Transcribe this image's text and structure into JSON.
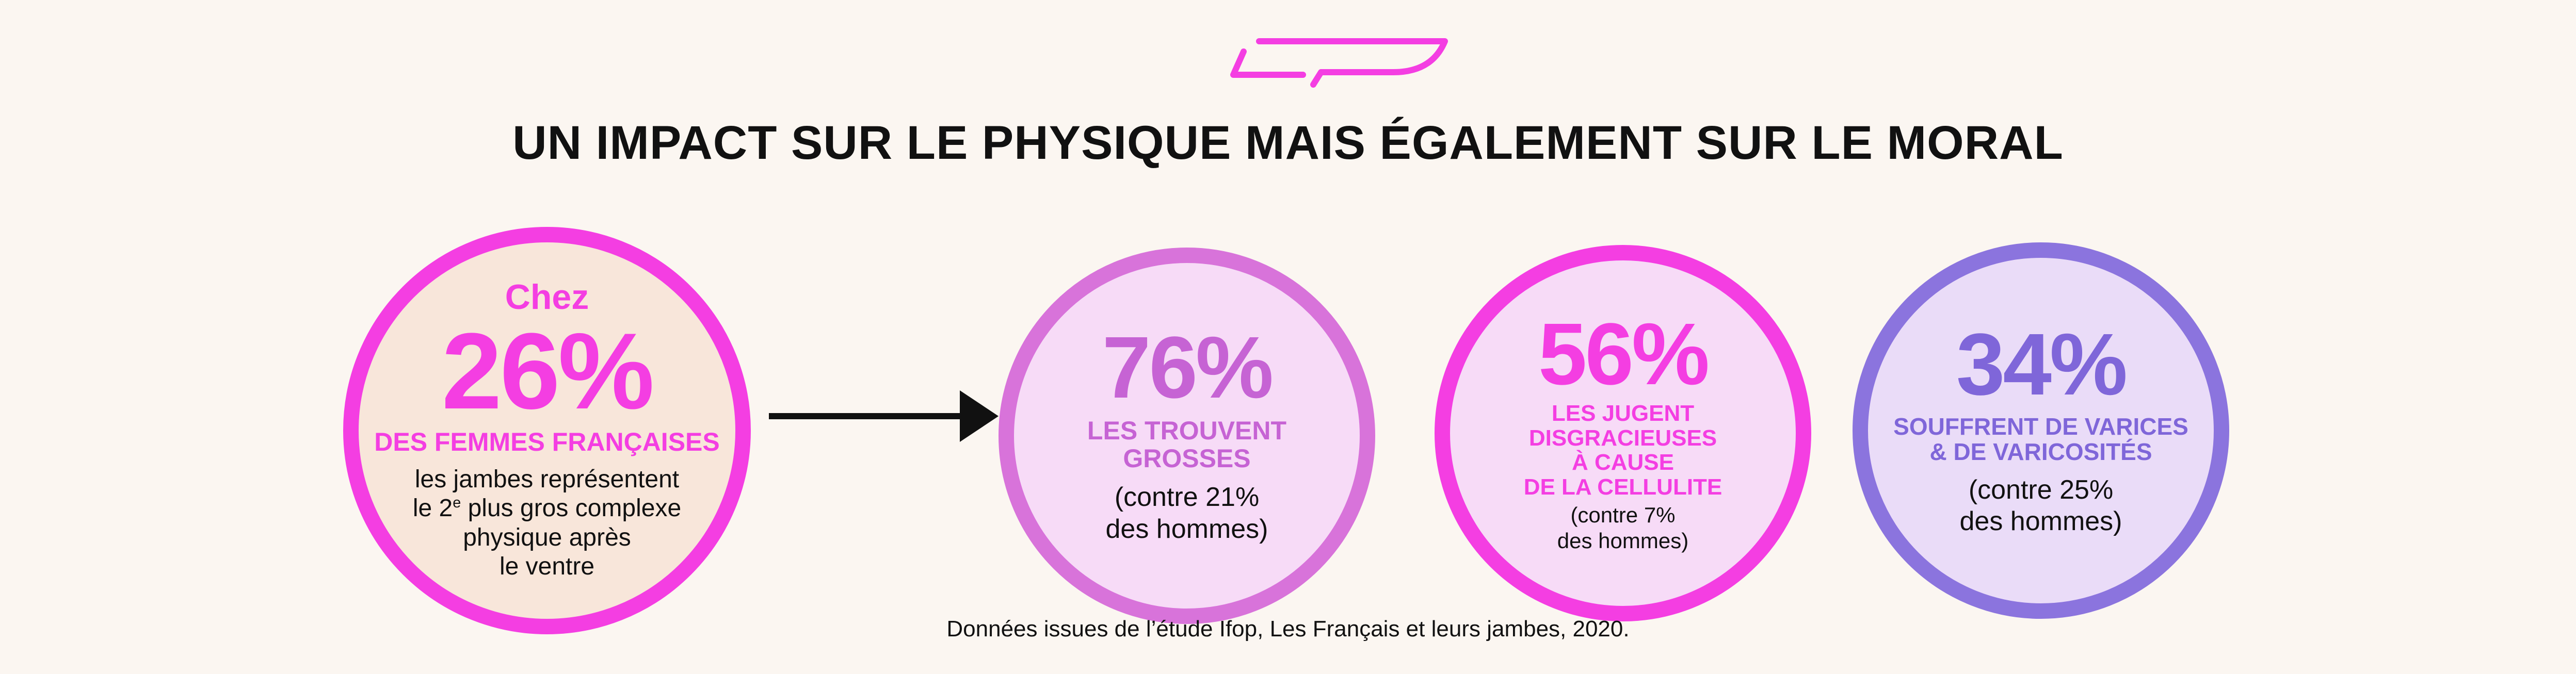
{
  "title": "UN IMPACT SUR LE PHYSIQUE MAIS ÉGALEMENT SUR LE MORAL",
  "stats": [
    {
      "intro": "Chez",
      "value": "26%",
      "headline": "DES FEMMES FRANÇAISES",
      "note_lines": [
        "les jambes représentent",
        "plus gros complexe",
        "physique après",
        "le ventre"
      ],
      "note_ordinal": "le 2",
      "note_ordinal_sup": "e"
    },
    {
      "value": "76%",
      "headline_lines": [
        "LES TROUVENT",
        "GROSSES"
      ],
      "note_lines": [
        "(contre 21%",
        "des hommes)"
      ]
    },
    {
      "value": "56%",
      "headline_lines": [
        "LES JUGENT",
        "DISGRACIEUSES",
        "À CAUSE",
        "DE LA CELLULITE"
      ],
      "note_lines": [
        "(contre 7%",
        "des hommes)"
      ]
    },
    {
      "value": "34%",
      "headline_lines": [
        "SOUFFRENT DE VARICES",
        "& DE VARICOSITÉS"
      ],
      "note_lines": [
        "(contre 25%",
        "des hommes)"
      ]
    }
  ],
  "source": "Données issues de l’étude Ifop, Les Français et leurs jambes, 2020.",
  "colors": {
    "magenta": "#f43ee2",
    "orchid": "#d873da",
    "violet": "#8b74de",
    "background": "#fbf6f1"
  },
  "icons": {
    "logo": "brand-logo-icon",
    "arrow": "right-arrow-icon"
  }
}
